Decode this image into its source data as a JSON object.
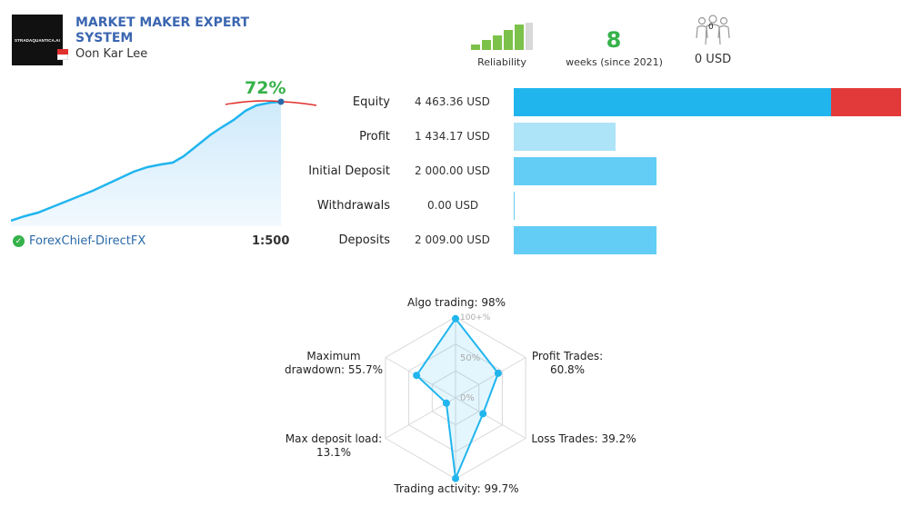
{
  "header": {
    "logo_text": "STRADAQUANTICA.AI",
    "title": "MARKET MAKER EXPERT SYSTEM",
    "author": "Oon Kar Lee",
    "flag": "singapore"
  },
  "stats": {
    "reliability_label": "Reliability",
    "reliability_level": 0.8,
    "weeks_value": "8",
    "weeks_label": "weeks (since 2021)",
    "subscribers_icon_count": "0",
    "subscribers_funds": "0 USD"
  },
  "growth": {
    "percent": "72%",
    "broker": "ForexChief-DirectFX",
    "leverage": "1:500"
  },
  "balance_rows": [
    {
      "label": "Equity",
      "value": "4 463.36 USD",
      "amount": 4463.36
    },
    {
      "label": "Profit",
      "value": "1 434.17 USD",
      "amount": 1434.17
    },
    {
      "label": "Initial Deposit",
      "value": "2 000.00 USD",
      "amount": 2000.0
    },
    {
      "label": "Withdrawals",
      "value": "0.00 USD",
      "amount": 0
    },
    {
      "label": "Deposits",
      "value": "2 009.00 USD",
      "amount": 2009.0
    }
  ],
  "radar": {
    "ticks": [
      "100+%",
      "50%",
      "0%"
    ],
    "axes": [
      {
        "label_lines": [
          "Algo trading: 98%"
        ],
        "value": 98
      },
      {
        "label_lines": [
          "Profit Trades:",
          "60.8%"
        ],
        "value": 60.8
      },
      {
        "label_lines": [
          "Loss Trades: 39.2%"
        ],
        "value": 39.2
      },
      {
        "label_lines": [
          "Trading activity: 99.7%"
        ],
        "value": 99.7
      },
      {
        "label_lines": [
          "Max deposit load:",
          "13.1%"
        ],
        "value": 13.1
      },
      {
        "label_lines": [
          "Maximum",
          "drawdown: 55.7%"
        ],
        "value": 55.7
      }
    ]
  },
  "colors": {
    "accent_blue": "#21b5ee",
    "equity_red": "#e23a3a",
    "profit_light": "#aee4f8",
    "deposit_blue": "#63cdf5",
    "green": "#36b24a",
    "title_blue": "#3b66b0"
  }
}
